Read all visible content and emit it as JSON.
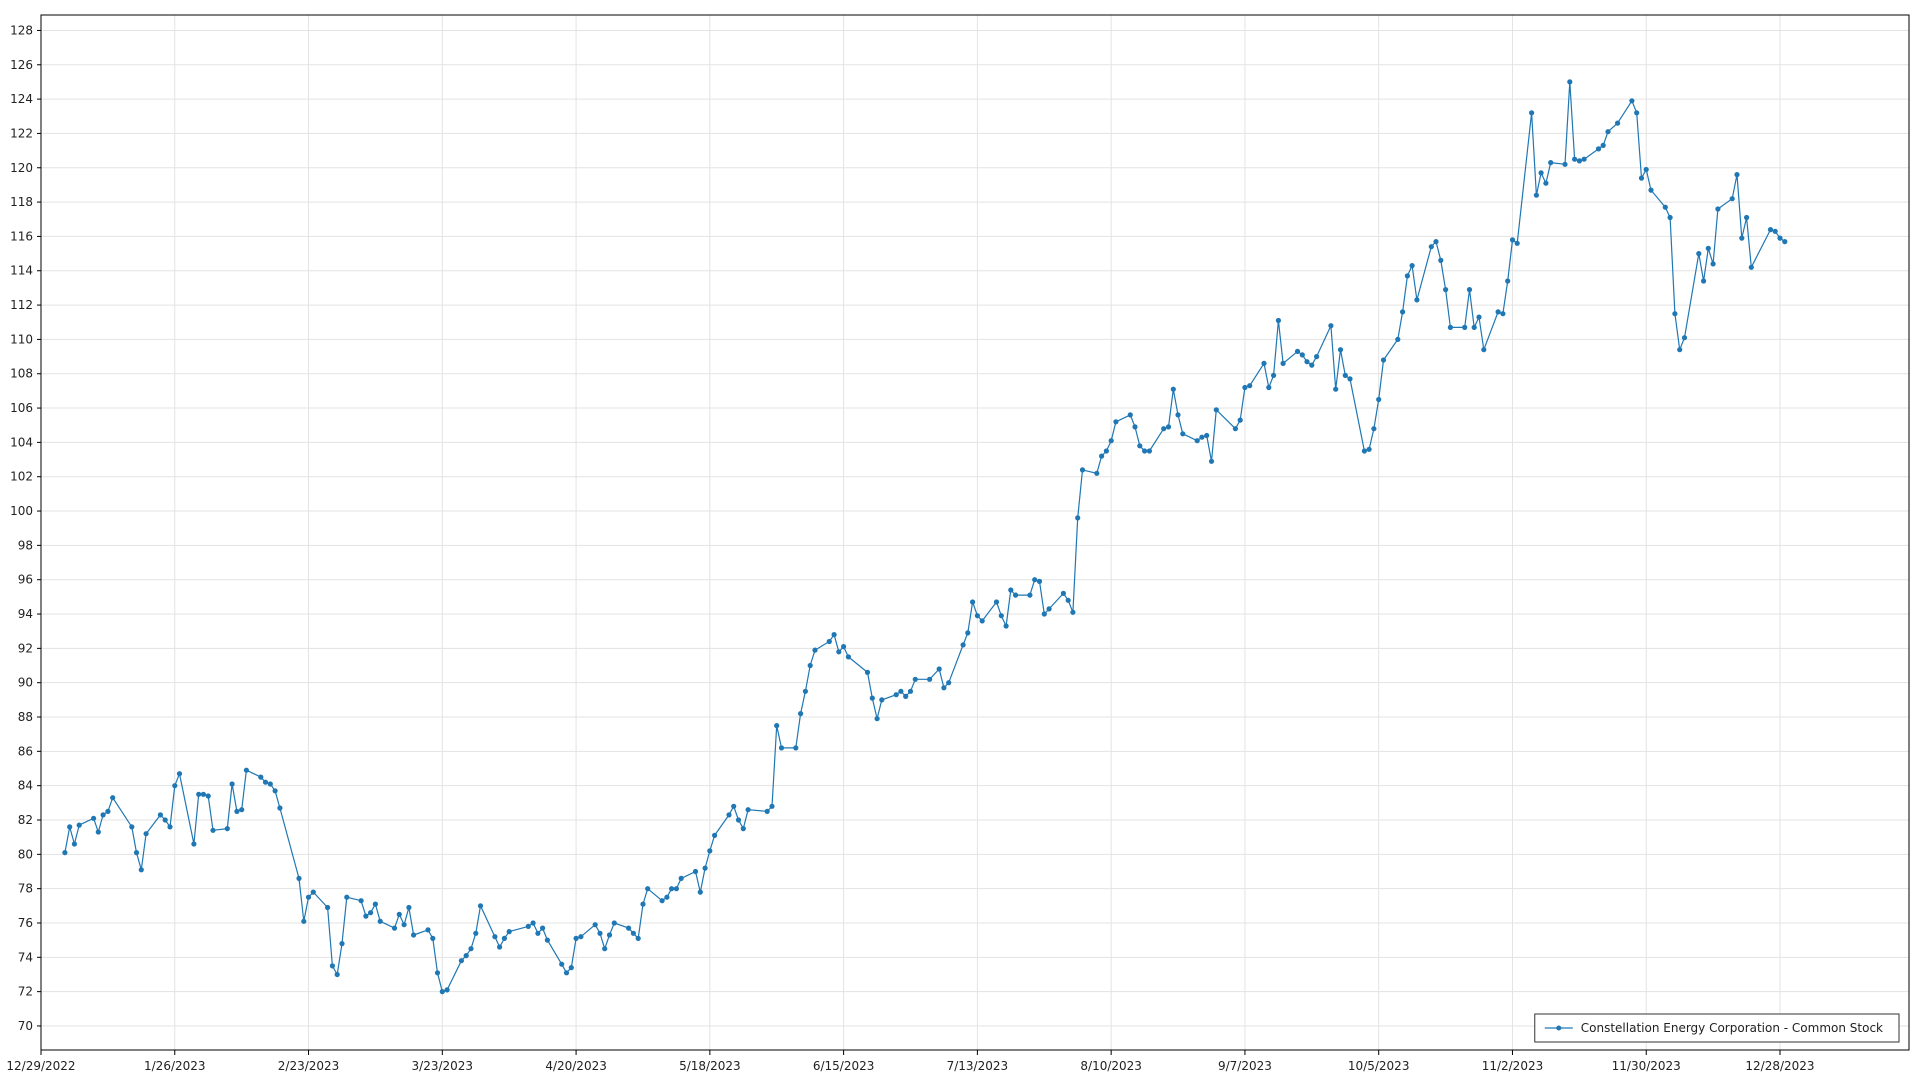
{
  "chart_data": {
    "type": "line",
    "title": "",
    "xlabel": "",
    "ylabel": "",
    "x_tick_labels": [
      "12/29/2022",
      "1/26/2023",
      "2/23/2023",
      "3/23/2023",
      "4/20/2023",
      "5/18/2023",
      "6/15/2023",
      "7/13/2023",
      "8/10/2023",
      "9/7/2023",
      "10/5/2023",
      "11/2/2023",
      "11/30/2023",
      "12/28/2023"
    ],
    "y_ticks": [
      70,
      72,
      74,
      76,
      78,
      80,
      82,
      84,
      86,
      88,
      90,
      92,
      94,
      96,
      98,
      100,
      102,
      104,
      106,
      108,
      110,
      112,
      114,
      116,
      118,
      120,
      122,
      124,
      126,
      128
    ],
    "xlim": [
      "2022-12-29",
      "2024-01-24"
    ],
    "ylim": [
      68.6,
      128.9
    ],
    "grid": true,
    "legend_position": "bottom-right",
    "colors": {
      "series": "#1f77b4",
      "grid": "#e3e3e3",
      "axis": "#000000"
    },
    "series": [
      {
        "name": "Constellation Energy Corporation - Common Stock",
        "points": [
          [
            "2023-01-03",
            80.1
          ],
          [
            "2023-01-04",
            81.6
          ],
          [
            "2023-01-05",
            80.6
          ],
          [
            "2023-01-06",
            81.7
          ],
          [
            "2023-01-09",
            82.1
          ],
          [
            "2023-01-10",
            81.3
          ],
          [
            "2023-01-11",
            82.3
          ],
          [
            "2023-01-12",
            82.5
          ],
          [
            "2023-01-13",
            83.3
          ],
          [
            "2023-01-17",
            81.6
          ],
          [
            "2023-01-18",
            80.1
          ],
          [
            "2023-01-19",
            79.1
          ],
          [
            "2023-01-20",
            81.2
          ],
          [
            "2023-01-23",
            82.3
          ],
          [
            "2023-01-24",
            82.0
          ],
          [
            "2023-01-25",
            81.6
          ],
          [
            "2023-01-26",
            84.0
          ],
          [
            "2023-01-27",
            84.7
          ],
          [
            "2023-01-30",
            80.6
          ],
          [
            "2023-01-31",
            83.5
          ],
          [
            "2023-02-01",
            83.5
          ],
          [
            "2023-02-02",
            83.4
          ],
          [
            "2023-02-03",
            81.4
          ],
          [
            "2023-02-06",
            81.5
          ],
          [
            "2023-02-07",
            84.1
          ],
          [
            "2023-02-08",
            82.5
          ],
          [
            "2023-02-09",
            82.6
          ],
          [
            "2023-02-10",
            84.9
          ],
          [
            "2023-02-13",
            84.5
          ],
          [
            "2023-02-14",
            84.2
          ],
          [
            "2023-02-15",
            84.1
          ],
          [
            "2023-02-16",
            83.7
          ],
          [
            "2023-02-17",
            82.7
          ],
          [
            "2023-02-21",
            78.6
          ],
          [
            "2023-02-22",
            76.1
          ],
          [
            "2023-02-23",
            77.5
          ],
          [
            "2023-02-24",
            77.8
          ],
          [
            "2023-02-27",
            76.9
          ],
          [
            "2023-02-28",
            73.5
          ],
          [
            "2023-03-01",
            73.0
          ],
          [
            "2023-03-02",
            74.8
          ],
          [
            "2023-03-03",
            77.5
          ],
          [
            "2023-03-06",
            77.3
          ],
          [
            "2023-03-07",
            76.4
          ],
          [
            "2023-03-08",
            76.6
          ],
          [
            "2023-03-09",
            77.1
          ],
          [
            "2023-03-10",
            76.1
          ],
          [
            "2023-03-13",
            75.7
          ],
          [
            "2023-03-14",
            76.5
          ],
          [
            "2023-03-15",
            75.9
          ],
          [
            "2023-03-16",
            76.9
          ],
          [
            "2023-03-17",
            75.3
          ],
          [
            "2023-03-20",
            75.6
          ],
          [
            "2023-03-21",
            75.1
          ],
          [
            "2023-03-22",
            73.1
          ],
          [
            "2023-03-23",
            72.0
          ],
          [
            "2023-03-24",
            72.1
          ],
          [
            "2023-03-27",
            73.8
          ],
          [
            "2023-03-28",
            74.1
          ],
          [
            "2023-03-29",
            74.5
          ],
          [
            "2023-03-30",
            75.4
          ],
          [
            "2023-03-31",
            77.0
          ],
          [
            "2023-04-03",
            75.2
          ],
          [
            "2023-04-04",
            74.6
          ],
          [
            "2023-04-05",
            75.1
          ],
          [
            "2023-04-06",
            75.5
          ],
          [
            "2023-04-10",
            75.8
          ],
          [
            "2023-04-11",
            76.0
          ],
          [
            "2023-04-12",
            75.4
          ],
          [
            "2023-04-13",
            75.7
          ],
          [
            "2023-04-14",
            75.0
          ],
          [
            "2023-04-17",
            73.6
          ],
          [
            "2023-04-18",
            73.1
          ],
          [
            "2023-04-19",
            73.4
          ],
          [
            "2023-04-20",
            75.1
          ],
          [
            "2023-04-21",
            75.2
          ],
          [
            "2023-04-24",
            75.9
          ],
          [
            "2023-04-25",
            75.4
          ],
          [
            "2023-04-26",
            74.5
          ],
          [
            "2023-04-27",
            75.3
          ],
          [
            "2023-04-28",
            76.0
          ],
          [
            "2023-05-01",
            75.7
          ],
          [
            "2023-05-02",
            75.4
          ],
          [
            "2023-05-03",
            75.1
          ],
          [
            "2023-05-04",
            77.1
          ],
          [
            "2023-05-05",
            78.0
          ],
          [
            "2023-05-08",
            77.3
          ],
          [
            "2023-05-09",
            77.5
          ],
          [
            "2023-05-10",
            78.0
          ],
          [
            "2023-05-11",
            78.0
          ],
          [
            "2023-05-12",
            78.6
          ],
          [
            "2023-05-15",
            79.0
          ],
          [
            "2023-05-16",
            77.8
          ],
          [
            "2023-05-17",
            79.2
          ],
          [
            "2023-05-18",
            80.2
          ],
          [
            "2023-05-19",
            81.1
          ],
          [
            "2023-05-22",
            82.3
          ],
          [
            "2023-05-23",
            82.8
          ],
          [
            "2023-05-24",
            82.0
          ],
          [
            "2023-05-25",
            81.5
          ],
          [
            "2023-05-26",
            82.6
          ],
          [
            "2023-05-30",
            82.5
          ],
          [
            "2023-05-31",
            82.8
          ],
          [
            "2023-06-01",
            87.5
          ],
          [
            "2023-06-02",
            86.2
          ],
          [
            "2023-06-05",
            86.2
          ],
          [
            "2023-06-06",
            88.2
          ],
          [
            "2023-06-07",
            89.5
          ],
          [
            "2023-06-08",
            91.0
          ],
          [
            "2023-06-09",
            91.9
          ],
          [
            "2023-06-12",
            92.4
          ],
          [
            "2023-06-13",
            92.8
          ],
          [
            "2023-06-14",
            91.8
          ],
          [
            "2023-06-15",
            92.1
          ],
          [
            "2023-06-16",
            91.5
          ],
          [
            "2023-06-20",
            90.6
          ],
          [
            "2023-06-21",
            89.1
          ],
          [
            "2023-06-22",
            87.9
          ],
          [
            "2023-06-23",
            89.0
          ],
          [
            "2023-06-26",
            89.3
          ],
          [
            "2023-06-27",
            89.5
          ],
          [
            "2023-06-28",
            89.2
          ],
          [
            "2023-06-29",
            89.5
          ],
          [
            "2023-06-30",
            90.2
          ],
          [
            "2023-07-03",
            90.2
          ],
          [
            "2023-07-05",
            90.8
          ],
          [
            "2023-07-06",
            89.7
          ],
          [
            "2023-07-07",
            90.0
          ],
          [
            "2023-07-10",
            92.2
          ],
          [
            "2023-07-11",
            92.9
          ],
          [
            "2023-07-12",
            94.7
          ],
          [
            "2023-07-13",
            93.9
          ],
          [
            "2023-07-14",
            93.6
          ],
          [
            "2023-07-17",
            94.7
          ],
          [
            "2023-07-18",
            93.9
          ],
          [
            "2023-07-19",
            93.3
          ],
          [
            "2023-07-20",
            95.4
          ],
          [
            "2023-07-21",
            95.1
          ],
          [
            "2023-07-24",
            95.1
          ],
          [
            "2023-07-25",
            96.0
          ],
          [
            "2023-07-26",
            95.9
          ],
          [
            "2023-07-27",
            94.0
          ],
          [
            "2023-07-28",
            94.3
          ],
          [
            "2023-07-31",
            95.2
          ],
          [
            "2023-08-01",
            94.8
          ],
          [
            "2023-08-02",
            94.1
          ],
          [
            "2023-08-03",
            99.6
          ],
          [
            "2023-08-04",
            102.4
          ],
          [
            "2023-08-07",
            102.2
          ],
          [
            "2023-08-08",
            103.2
          ],
          [
            "2023-08-09",
            103.5
          ],
          [
            "2023-08-10",
            104.1
          ],
          [
            "2023-08-11",
            105.2
          ],
          [
            "2023-08-14",
            105.6
          ],
          [
            "2023-08-15",
            104.9
          ],
          [
            "2023-08-16",
            103.8
          ],
          [
            "2023-08-17",
            103.5
          ],
          [
            "2023-08-18",
            103.5
          ],
          [
            "2023-08-21",
            104.8
          ],
          [
            "2023-08-22",
            104.9
          ],
          [
            "2023-08-23",
            107.1
          ],
          [
            "2023-08-24",
            105.6
          ],
          [
            "2023-08-25",
            104.5
          ],
          [
            "2023-08-28",
            104.1
          ],
          [
            "2023-08-29",
            104.3
          ],
          [
            "2023-08-30",
            104.4
          ],
          [
            "2023-08-31",
            102.9
          ],
          [
            "2023-09-01",
            105.9
          ],
          [
            "2023-09-05",
            104.8
          ],
          [
            "2023-09-06",
            105.3
          ],
          [
            "2023-09-07",
            107.2
          ],
          [
            "2023-09-08",
            107.3
          ],
          [
            "2023-09-11",
            108.6
          ],
          [
            "2023-09-12",
            107.2
          ],
          [
            "2023-09-13",
            107.9
          ],
          [
            "2023-09-14",
            111.1
          ],
          [
            "2023-09-15",
            108.6
          ],
          [
            "2023-09-18",
            109.3
          ],
          [
            "2023-09-19",
            109.1
          ],
          [
            "2023-09-20",
            108.7
          ],
          [
            "2023-09-21",
            108.5
          ],
          [
            "2023-09-22",
            109.0
          ],
          [
            "2023-09-25",
            110.8
          ],
          [
            "2023-09-26",
            107.1
          ],
          [
            "2023-09-27",
            109.4
          ],
          [
            "2023-09-28",
            107.9
          ],
          [
            "2023-09-29",
            107.7
          ],
          [
            "2023-10-02",
            103.5
          ],
          [
            "2023-10-03",
            103.6
          ],
          [
            "2023-10-04",
            104.8
          ],
          [
            "2023-10-05",
            106.5
          ],
          [
            "2023-10-06",
            108.8
          ],
          [
            "2023-10-09",
            110.0
          ],
          [
            "2023-10-10",
            111.6
          ],
          [
            "2023-10-11",
            113.7
          ],
          [
            "2023-10-12",
            114.3
          ],
          [
            "2023-10-13",
            112.3
          ],
          [
            "2023-10-16",
            115.4
          ],
          [
            "2023-10-17",
            115.7
          ],
          [
            "2023-10-18",
            114.6
          ],
          [
            "2023-10-19",
            112.9
          ],
          [
            "2023-10-20",
            110.7
          ],
          [
            "2023-10-23",
            110.7
          ],
          [
            "2023-10-24",
            112.9
          ],
          [
            "2023-10-25",
            110.7
          ],
          [
            "2023-10-26",
            111.3
          ],
          [
            "2023-10-27",
            109.4
          ],
          [
            "2023-10-30",
            111.6
          ],
          [
            "2023-10-31",
            111.5
          ],
          [
            "2023-11-01",
            113.4
          ],
          [
            "2023-11-02",
            115.8
          ],
          [
            "2023-11-03",
            115.6
          ],
          [
            "2023-11-06",
            123.2
          ],
          [
            "2023-11-07",
            118.4
          ],
          [
            "2023-11-08",
            119.7
          ],
          [
            "2023-11-09",
            119.1
          ],
          [
            "2023-11-10",
            120.3
          ],
          [
            "2023-11-13",
            120.2
          ],
          [
            "2023-11-14",
            125.0
          ],
          [
            "2023-11-15",
            120.5
          ],
          [
            "2023-11-16",
            120.4
          ],
          [
            "2023-11-17",
            120.5
          ],
          [
            "2023-11-20",
            121.1
          ],
          [
            "2023-11-21",
            121.3
          ],
          [
            "2023-11-22",
            122.1
          ],
          [
            "2023-11-24",
            122.6
          ],
          [
            "2023-11-27",
            123.9
          ],
          [
            "2023-11-28",
            123.2
          ],
          [
            "2023-11-29",
            119.4
          ],
          [
            "2023-11-30",
            119.9
          ],
          [
            "2023-12-01",
            118.7
          ],
          [
            "2023-12-04",
            117.7
          ],
          [
            "2023-12-05",
            117.1
          ],
          [
            "2023-12-06",
            111.5
          ],
          [
            "2023-12-07",
            109.4
          ],
          [
            "2023-12-08",
            110.1
          ],
          [
            "2023-12-11",
            115.0
          ],
          [
            "2023-12-12",
            113.4
          ],
          [
            "2023-12-13",
            115.3
          ],
          [
            "2023-12-14",
            114.4
          ],
          [
            "2023-12-15",
            117.6
          ],
          [
            "2023-12-18",
            118.2
          ],
          [
            "2023-12-19",
            119.6
          ],
          [
            "2023-12-20",
            115.9
          ],
          [
            "2023-12-21",
            117.1
          ],
          [
            "2023-12-22",
            114.2
          ],
          [
            "2023-12-26",
            116.4
          ],
          [
            "2023-12-27",
            116.3
          ],
          [
            "2023-12-28",
            115.9
          ],
          [
            "2023-12-29",
            115.7
          ]
        ]
      }
    ]
  }
}
